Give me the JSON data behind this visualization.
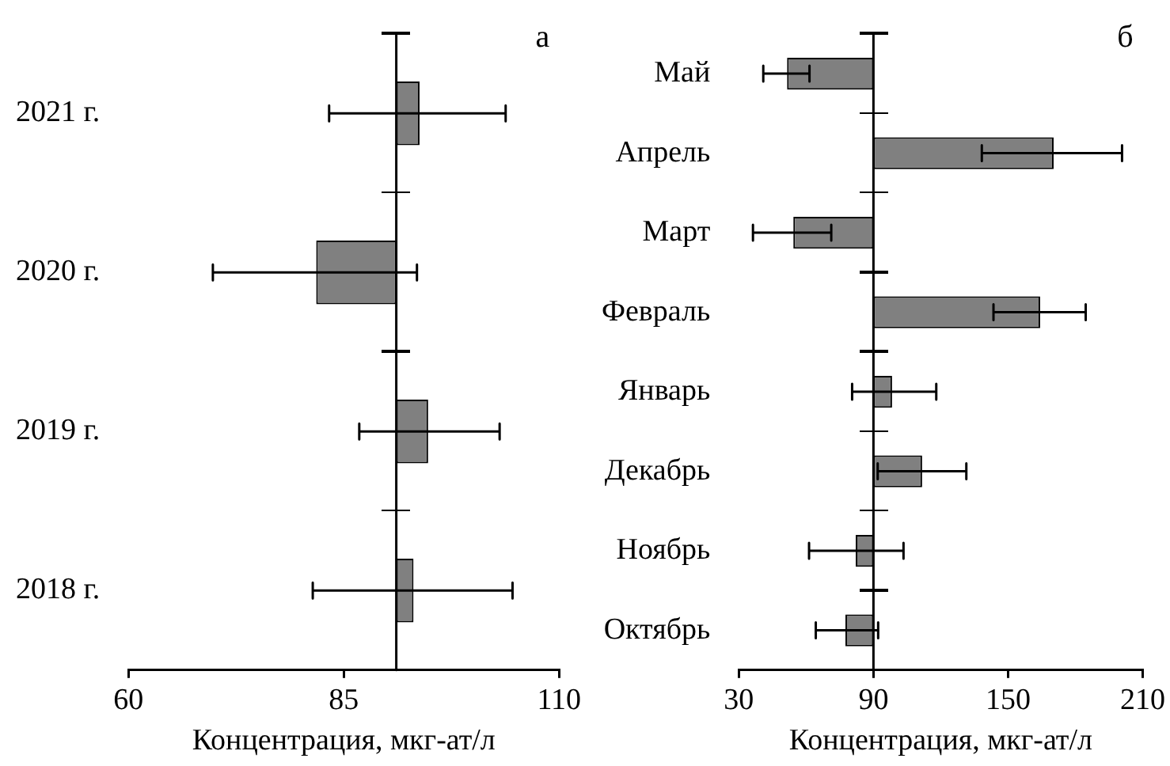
{
  "chart_data": [
    {
      "type": "bar",
      "orientation": "horizontal",
      "categories": [
        "2021 г.",
        "2020 г.",
        "2019 г.",
        "2018 г."
      ],
      "base": [
        91.1,
        91.1,
        91.1,
        91.1
      ],
      "values": [
        2.7,
        -9.3,
        3.7,
        2.0
      ],
      "errors": [
        [
          83.3,
          103.8
        ],
        [
          69.8,
          93.5
        ],
        [
          86.8,
          103.1
        ],
        [
          81.4,
          104.6
        ]
      ],
      "color": "#808080",
      "xlim": [
        60,
        110
      ],
      "xticks": [
        60,
        85,
        110
      ],
      "xlabel": "Концентрация, мкг-ат/л",
      "grid": false,
      "legend": false,
      "ref_lines": [
        {
          "axis": "x",
          "value": 91.1
        }
      ],
      "annotations": [
        "а"
      ]
    },
    {
      "type": "bar",
      "orientation": "horizontal",
      "categories": [
        "Май",
        "Апрель",
        "Март",
        "Февраль",
        "Январь",
        "Декабрь",
        "Ноябрь",
        "Октябрь"
      ],
      "base": [
        90,
        90,
        90,
        90,
        90,
        90,
        90,
        90
      ],
      "values": [
        -38.5,
        80.3,
        -35.7,
        74.3,
        8.3,
        21.7,
        -7.9,
        -12.5
      ],
      "errors": [
        [
          40.9,
          61.5
        ],
        [
          138.3,
          200.8
        ],
        [
          36.3,
          71.2
        ],
        [
          143.5,
          184.6
        ],
        [
          80.5,
          118.0
        ],
        [
          91.9,
          131.4
        ],
        [
          61.3,
          103.4
        ],
        [
          64.3,
          92.1
        ]
      ],
      "color": "#808080",
      "xlim": [
        30,
        210
      ],
      "xticks": [
        30,
        90,
        150,
        210
      ],
      "xlabel": "Концентрация, мкг-ат/л",
      "grid": false,
      "legend": false,
      "ref_lines": [
        {
          "axis": "x",
          "value": 90
        }
      ],
      "annotations": [
        "б"
      ]
    }
  ]
}
